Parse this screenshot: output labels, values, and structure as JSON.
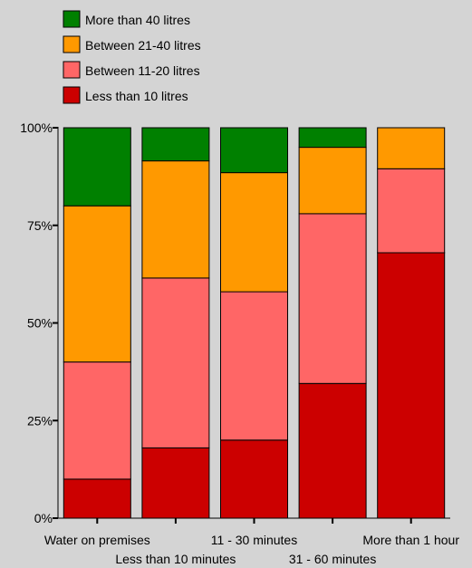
{
  "chart_data": {
    "type": "bar",
    "stacked": true,
    "categories": [
      "Water on premises",
      "Less than 10 minutes",
      "11 - 30 minutes",
      "31 - 60 minutes",
      "More than 1 hour"
    ],
    "series": [
      {
        "name": "Less than 10 litres",
        "color": "#cc0000",
        "values": [
          10,
          18,
          20,
          34.5,
          68
        ]
      },
      {
        "name": "Between 11-20 litres",
        "color": "#ff6666",
        "values": [
          30,
          43.5,
          38,
          43.5,
          21.5
        ]
      },
      {
        "name": "Between 21-40 litres",
        "color": "#ff9900",
        "values": [
          40,
          30,
          30.5,
          17,
          10.5
        ]
      },
      {
        "name": "More than 40 litres",
        "color": "#008000",
        "values": [
          20,
          8.5,
          11.5,
          5,
          0
        ]
      }
    ],
    "legend_order": [
      "More than 40 litres",
      "Between 21-40 litres",
      "Between 11-20 litres",
      "Less than 10 litres"
    ],
    "yticks": [
      "0%",
      "25%",
      "50%",
      "75%",
      "100%"
    ],
    "ylim": [
      0,
      100
    ],
    "legend_position": "top-left",
    "grid": false
  }
}
